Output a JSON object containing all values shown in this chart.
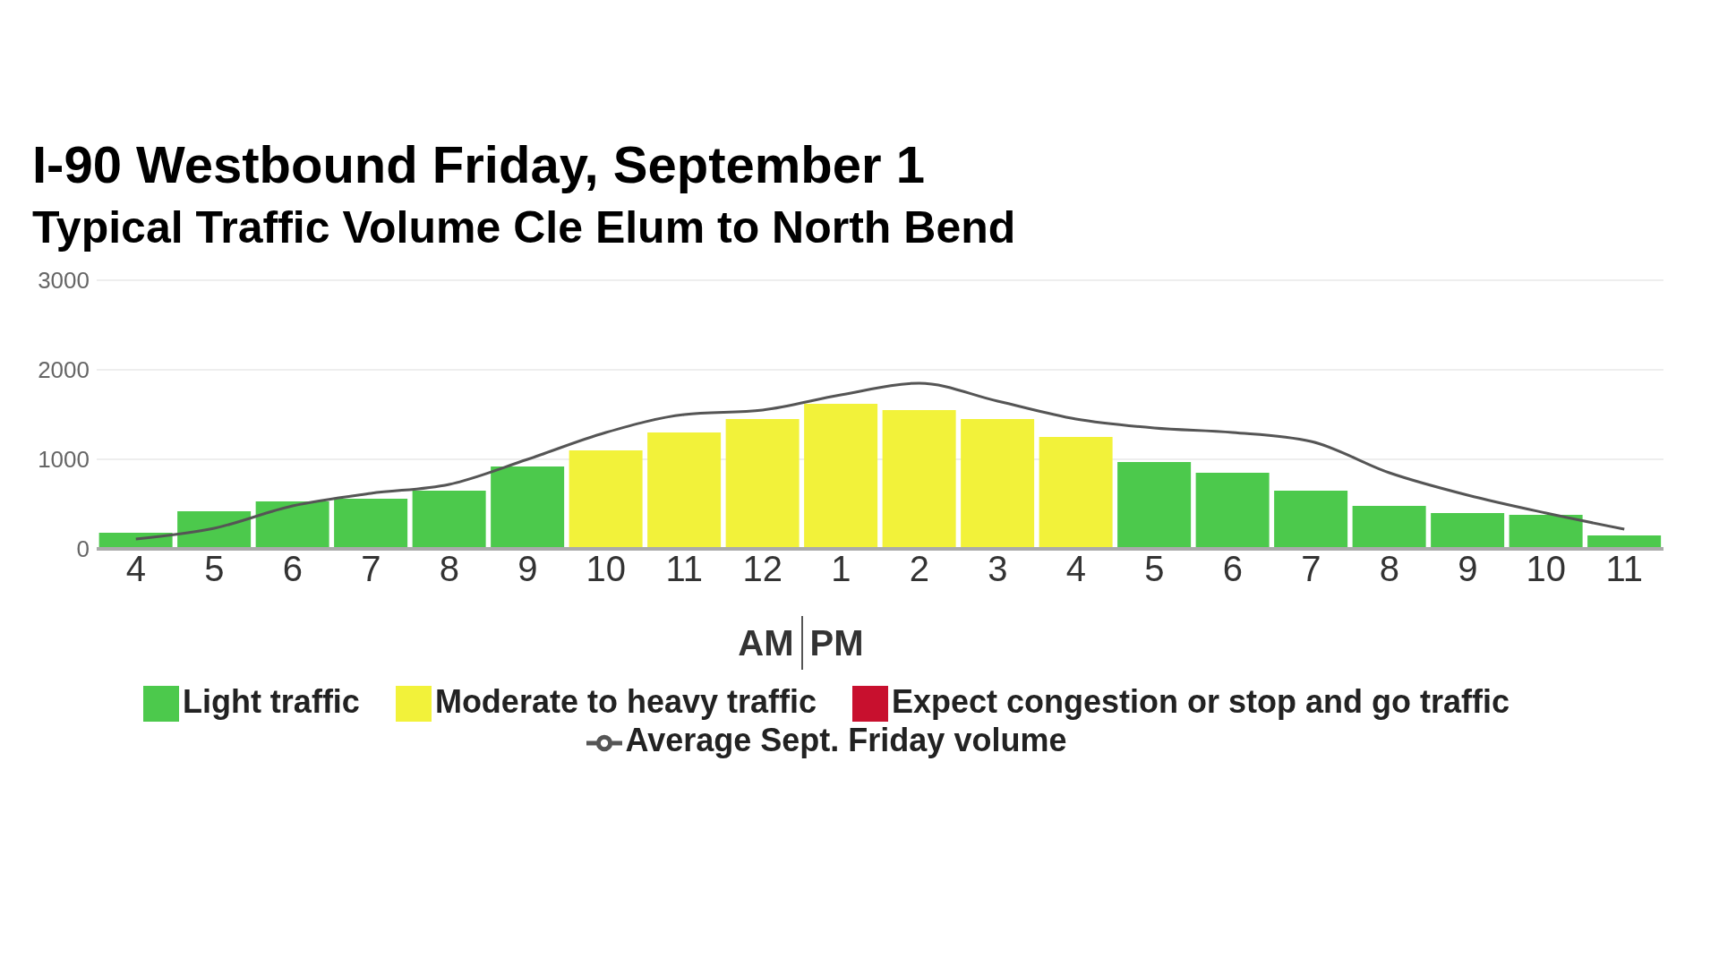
{
  "chart_data": {
    "type": "bar",
    "title": "I-90 Westbound Friday, September 1",
    "subtitle": "Typical Traffic Volume Cle Elum to North Bend",
    "categories": [
      "4",
      "5",
      "6",
      "7",
      "8",
      "9",
      "10",
      "11",
      "12",
      "1",
      "2",
      "3",
      "4",
      "5",
      "6",
      "7",
      "8",
      "9",
      "10",
      "11"
    ],
    "stacked": true,
    "series": [
      {
        "name": "Light traffic",
        "color": "#4cc94c",
        "values": [
          180,
          420,
          530,
          560,
          650,
          920,
          null,
          null,
          null,
          null,
          null,
          null,
          null,
          970,
          850,
          650,
          480,
          400,
          380,
          150
        ]
      },
      {
        "name": "Moderate to heavy traffic",
        "color": "#f2f23a",
        "values": [
          null,
          null,
          null,
          null,
          null,
          null,
          1100,
          1300,
          1450,
          1620,
          1550,
          1450,
          1250,
          null,
          null,
          null,
          null,
          null,
          null,
          null
        ]
      },
      {
        "name": "Expect congestion or stop and go traffic",
        "color": "#c8102e",
        "values": [
          null,
          null,
          null,
          null,
          null,
          null,
          null,
          null,
          null,
          null,
          null,
          null,
          null,
          null,
          null,
          null,
          null,
          null,
          null,
          null
        ]
      },
      {
        "name": "Average Sept. Friday volume",
        "type": "line",
        "color": "#555555",
        "values": [
          110,
          230,
          480,
          620,
          720,
          1000,
          1300,
          1500,
          1550,
          1720,
          1850,
          1650,
          1450,
          1350,
          1300,
          1200,
          850,
          600,
          400,
          220
        ]
      }
    ],
    "ylim": [
      0,
      3000
    ],
    "yticks": [
      0,
      1000,
      2000,
      3000
    ],
    "grid": "y",
    "legend": "bottom",
    "marker": "none",
    "annotations": [
      "AM",
      "PM"
    ]
  }
}
